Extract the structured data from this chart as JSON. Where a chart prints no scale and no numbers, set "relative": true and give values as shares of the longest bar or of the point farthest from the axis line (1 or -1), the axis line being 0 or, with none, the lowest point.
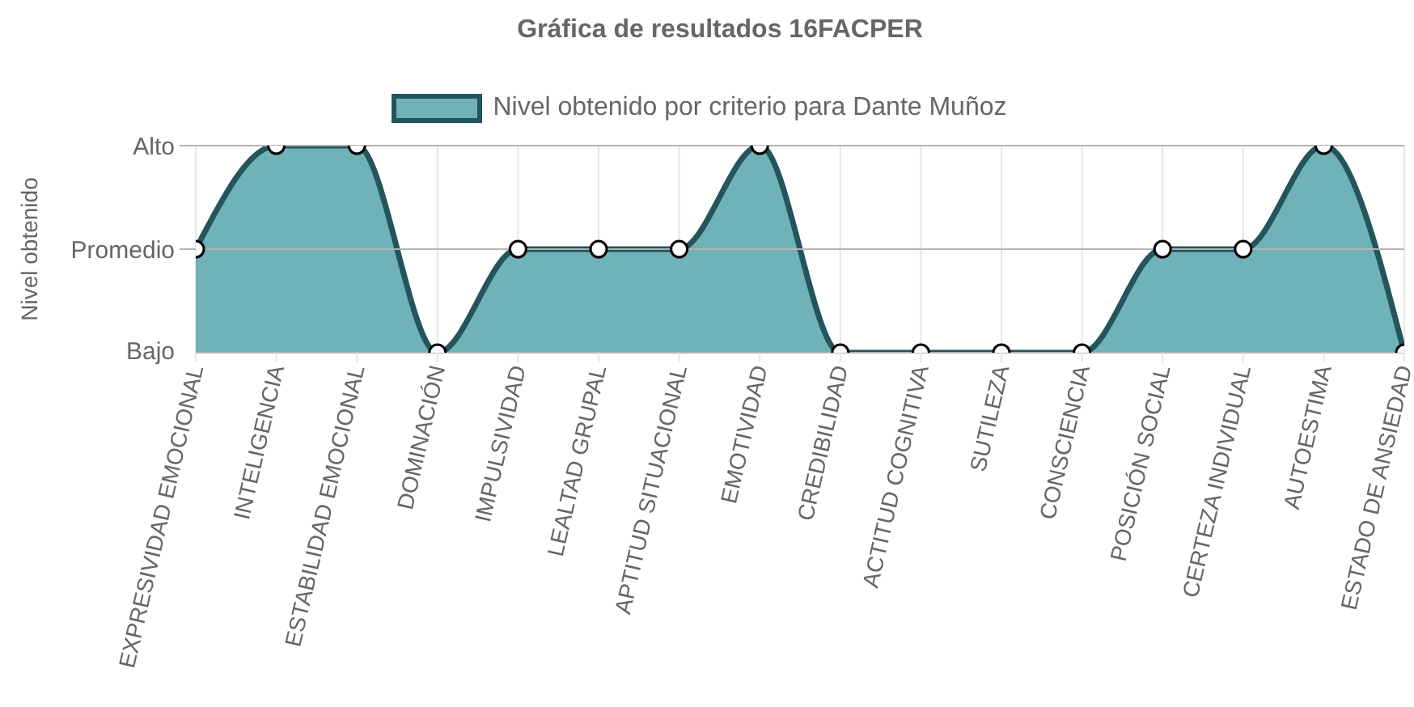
{
  "chart_data": {
    "type": "area",
    "title": "Gráfica de resultados 16FACPER",
    "ylabel": "Nivel obtenido",
    "categories": [
      "EXPRESIVIDAD EMOCIONAL",
      "INTELIGENCIA",
      "ESTABILIDAD EMOCIONAL",
      "DOMINACIÓN",
      "IMPULSIVIDAD",
      "LEALTAD GRUPAL",
      "APTITUD SITUACIONAL",
      "EMOTIVIDAD",
      "CREDIBILIDAD",
      "ACTITUD COGNITIVA",
      "SUTILEZA",
      "CONSCIENCIA",
      "POSICIÓN SOCIAL",
      "CERTEZA INDIVIDUAL",
      "AUTOESTIMA",
      "ESTADO DE ANSIEDAD"
    ],
    "relative": true,
    "series": [
      {
        "name": "Nivel obtenido por criterio para Dante Muñoz",
        "color": "#6fb2b7",
        "values": [
          0.5,
          1,
          1,
          0,
          0.5,
          0.5,
          0.5,
          1,
          0,
          0,
          0,
          0,
          0.5,
          0.5,
          1,
          0
        ]
      }
    ],
    "ref_lines": [
      {
        "axis": "y",
        "value": 1,
        "label": "Alto",
        "color": "#b3b3b3"
      },
      {
        "axis": "y",
        "value": 0.5,
        "label": "Promedio",
        "color": "#b3b3b3"
      }
    ],
    "annotations": [
      "Bajo"
    ],
    "grid": "x",
    "legend": "top",
    "marker": "circle"
  }
}
